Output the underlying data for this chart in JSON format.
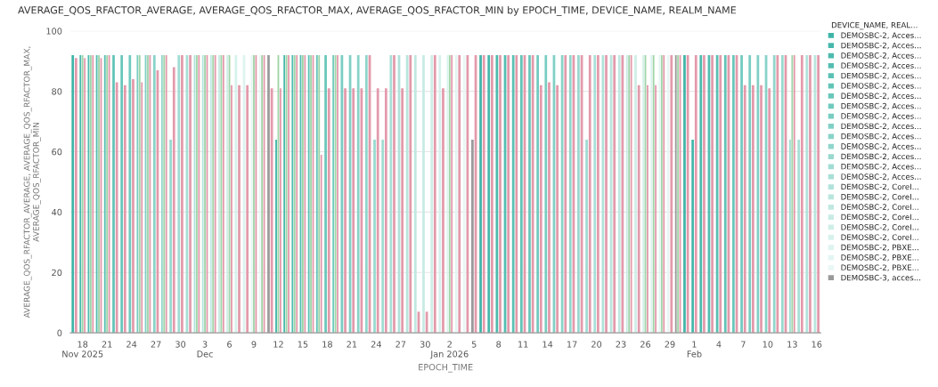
{
  "chart_data": {
    "type": "bar",
    "title": "AVERAGE_QOS_RFACTOR_AVERAGE, AVERAGE_QOS_RFACTOR_MAX, AVERAGE_QOS_RFACTOR_MIN by EPOCH_TIME, DEVICE_NAME, REALM_NAME",
    "xlabel": "EPOCH_TIME",
    "ylabel": "AVERAGE_QOS_RFACTOR_AVERAGE, AVERAGE_QOS_RFACTOR_MAX,\nAVERAGE_QOS_RFACTOR_MIN",
    "legend_title": "DEVICE_NAME, REAL...",
    "legend": "right",
    "grid": "y",
    "ylim": [
      0,
      100
    ],
    "yticks": [
      0,
      20,
      40,
      60,
      80,
      100
    ],
    "xlim": [
      "2025-11-16T12:00",
      "2026-02-16T12:00"
    ],
    "xticks": [
      {
        "value": "2025-11-18",
        "label": "18\nNov 2025"
      },
      {
        "value": "2025-11-21",
        "label": "21"
      },
      {
        "value": "2025-11-24",
        "label": "24"
      },
      {
        "value": "2025-11-27",
        "label": "27"
      },
      {
        "value": "2025-11-30",
        "label": "30"
      },
      {
        "value": "2025-12-03",
        "label": "3\nDec"
      },
      {
        "value": "2025-12-06",
        "label": "6"
      },
      {
        "value": "2025-12-09",
        "label": "9"
      },
      {
        "value": "2025-12-12",
        "label": "12"
      },
      {
        "value": "2025-12-15",
        "label": "15"
      },
      {
        "value": "2025-12-18",
        "label": "18"
      },
      {
        "value": "2025-12-21",
        "label": "21"
      },
      {
        "value": "2025-12-24",
        "label": "24"
      },
      {
        "value": "2025-12-27",
        "label": "27"
      },
      {
        "value": "2025-12-30",
        "label": "30"
      },
      {
        "value": "2026-01-02",
        "label": "2\nJan 2026"
      },
      {
        "value": "2026-01-05",
        "label": "5"
      },
      {
        "value": "2026-01-08",
        "label": "8"
      },
      {
        "value": "2026-01-11",
        "label": "11"
      },
      {
        "value": "2026-01-14",
        "label": "14"
      },
      {
        "value": "2026-01-17",
        "label": "17"
      },
      {
        "value": "2026-01-20",
        "label": "20"
      },
      {
        "value": "2026-01-23",
        "label": "23"
      },
      {
        "value": "2026-01-26",
        "label": "26"
      },
      {
        "value": "2026-01-29",
        "label": "29"
      },
      {
        "value": "2026-02-01",
        "label": "1\nFeb"
      },
      {
        "value": "2026-02-04",
        "label": "4"
      },
      {
        "value": "2026-02-07",
        "label": "7"
      },
      {
        "value": "2026-02-10",
        "label": "10"
      },
      {
        "value": "2026-02-13",
        "label": "13"
      },
      {
        "value": "2026-02-16",
        "label": "16"
      }
    ],
    "series": [
      {
        "name": "DEMOSBC-2, Acces...",
        "color": "#3fb5a8",
        "x": [
          "2025-11-17",
          "2025-12-12",
          "2026-01-06",
          "2026-01-31"
        ],
        "values": [
          92,
          64,
          92,
          92
        ]
      },
      {
        "name": "DEMOSBC-2, Acces...",
        "color": "#45b8ab",
        "x": [
          "2025-11-18",
          "2025-12-13",
          "2026-01-07",
          "2026-02-01"
        ],
        "values": [
          92,
          92,
          92,
          64
        ]
      },
      {
        "name": "DEMOSBC-2, Acces...",
        "color": "#4cbbae",
        "x": [
          "2025-11-19",
          "2025-12-14",
          "2026-01-08",
          "2026-02-02"
        ],
        "values": [
          92,
          92,
          92,
          92
        ]
      },
      {
        "name": "DEMOSBC-2, Acces...",
        "color": "#53beb1",
        "x": [
          "2025-11-20",
          "2025-12-15",
          "2026-01-09",
          "2026-02-03"
        ],
        "values": [
          92,
          92,
          92,
          92
        ]
      },
      {
        "name": "DEMOSBC-2, Acces...",
        "color": "#5ac1b4",
        "x": [
          "2025-11-21",
          "2025-12-16",
          "2026-01-10",
          "2026-02-04"
        ],
        "values": [
          92,
          92,
          92,
          92
        ]
      },
      {
        "name": "DEMOSBC-2, Acces...",
        "color": "#61c4b7",
        "x": [
          "2025-11-22",
          "2025-12-17",
          "2026-01-11",
          "2026-02-05"
        ],
        "values": [
          92,
          92,
          92,
          92
        ]
      },
      {
        "name": "DEMOSBC-2, Acces...",
        "color": "#68c7ba",
        "x": [
          "2025-11-23",
          "2025-12-18",
          "2026-01-12",
          "2026-02-06"
        ],
        "values": [
          92,
          92,
          92,
          92
        ]
      },
      {
        "name": "DEMOSBC-2, Acces...",
        "color": "#70cabe",
        "x": [
          "2025-11-24",
          "2025-12-19",
          "2026-01-13",
          "2026-02-07"
        ],
        "values": [
          92,
          92,
          92,
          92
        ]
      },
      {
        "name": "DEMOSBC-2, Acces...",
        "color": "#78cdc1",
        "x": [
          "2025-11-25",
          "2025-12-20",
          "2026-01-14",
          "2026-02-08"
        ],
        "values": [
          92,
          92,
          92,
          92
        ]
      },
      {
        "name": "DEMOSBC-2, Acces...",
        "color": "#80d0c5",
        "x": [
          "2025-11-26",
          "2025-12-21",
          "2026-01-15",
          "2026-02-09"
        ],
        "values": [
          92,
          92,
          92,
          92
        ]
      },
      {
        "name": "DEMOSBC-2, Acces...",
        "color": "#88d3c8",
        "x": [
          "2025-11-27",
          "2025-12-22",
          "2026-01-16",
          "2026-02-10"
        ],
        "values": [
          92,
          92,
          92,
          92
        ]
      },
      {
        "name": "DEMOSBC-2, Acces...",
        "color": "#90d6cc",
        "x": [
          "2025-11-28",
          "2025-12-23",
          "2026-01-17",
          "2026-02-11"
        ],
        "values": [
          92,
          92,
          92,
          92
        ]
      },
      {
        "name": "DEMOSBC-2, Acces...",
        "color": "#98d9cf",
        "x": [
          "2025-11-29",
          "2025-12-24",
          "2026-01-18",
          "2026-02-12"
        ],
        "values": [
          64,
          64,
          92,
          92
        ]
      },
      {
        "name": "DEMOSBC-2, Acces...",
        "color": "#a0dcd3",
        "x": [
          "2025-11-30",
          "2025-12-25",
          "2026-01-19",
          "2026-02-13"
        ],
        "values": [
          92,
          64,
          64,
          64
        ]
      },
      {
        "name": "DEMOSBC-2, Acces...",
        "color": "#a8dfd6",
        "x": [
          "2025-12-01",
          "2025-12-26",
          "2026-01-20",
          "2026-02-14"
        ],
        "values": [
          92,
          92,
          92,
          64
        ]
      },
      {
        "name": "DEMOSBC-2, CoreI...",
        "color": "#b0e2da",
        "x": [
          "2025-12-02",
          "2025-12-27",
          "2026-01-21",
          "2026-02-15"
        ],
        "values": [
          92,
          92,
          92,
          92
        ]
      },
      {
        "name": "DEMOSBC-2, CoreI...",
        "color": "#b8e5dd",
        "x": [
          "2025-12-03",
          "2025-12-28",
          "2026-01-22",
          "2026-02-16"
        ],
        "values": [
          92,
          92,
          92,
          92
        ]
      },
      {
        "name": "DEMOSBC-2, CoreI...",
        "color": "#c0e8e1",
        "x": [
          "2025-12-04",
          "2025-12-29",
          "2026-01-23"
        ],
        "values": [
          92,
          92,
          92
        ]
      },
      {
        "name": "DEMOSBC-2, CoreI...",
        "color": "#c8ebe4",
        "x": [
          "2025-12-05",
          "2025-12-30",
          "2026-01-24"
        ],
        "values": [
          92,
          92,
          92
        ]
      },
      {
        "name": "DEMOSBC-2, CoreI...",
        "color": "#cfeee8",
        "x": [
          "2025-12-06",
          "2025-12-31",
          "2026-01-25"
        ],
        "values": [
          92,
          92,
          92
        ]
      },
      {
        "name": "DEMOSBC-2, CoreI...",
        "color": "#d6f1eb",
        "x": [
          "2025-12-07",
          "2026-01-01",
          "2026-01-26"
        ],
        "values": [
          92,
          92,
          92
        ]
      },
      {
        "name": "DEMOSBC-2, PBXE...",
        "color": "#ddf3ef",
        "x": [
          "2025-12-08",
          "2026-01-02",
          "2026-01-27"
        ],
        "values": [
          92,
          92,
          92
        ]
      },
      {
        "name": "DEMOSBC-2, PBXE...",
        "color": "#e3f5f2",
        "x": [
          "2025-12-09",
          "2026-01-03",
          "2026-01-28"
        ],
        "values": [
          92,
          92,
          92
        ]
      },
      {
        "name": "DEMOSBC-2, PBXE...",
        "color": "#e9f7f5",
        "x": [
          "2025-12-10",
          "2026-01-04",
          "2026-01-29"
        ],
        "values": [
          92,
          92,
          92
        ]
      },
      {
        "name": "DEMOSBC-3, acces...",
        "color": "#9a9a9a",
        "x": [
          "2025-12-11",
          "2026-01-05",
          "2026-01-30"
        ],
        "values": [
          92,
          64,
          92
        ]
      },
      {
        "color": "#9fd4a8",
        "x": [
          "2025-11-18",
          "2025-11-19",
          "2025-11-20",
          "2025-11-21",
          "2025-11-25",
          "2025-11-26",
          "2025-11-28",
          "2025-12-02",
          "2025-12-03",
          "2025-12-04",
          "2025-12-05",
          "2025-12-06",
          "2025-12-09",
          "2025-12-10",
          "2025-12-12",
          "2025-12-13",
          "2025-12-14",
          "2025-12-15",
          "2025-12-16",
          "2025-12-17",
          "2025-12-19",
          "2026-01-02",
          "2026-01-24",
          "2026-01-26",
          "2026-01-27",
          "2026-01-28",
          "2026-01-30",
          "2026-02-13"
        ],
        "values": [
          92,
          92,
          92,
          92,
          92,
          92,
          92,
          92,
          92,
          92,
          92,
          92,
          92,
          92,
          92,
          92,
          92,
          92,
          92,
          92,
          92,
          92,
          92,
          92,
          92,
          92,
          92,
          92
        ]
      },
      {
        "color": "#e39aab",
        "x": [
          "2025-11-17",
          "2025-11-18",
          "2025-11-19",
          "2025-11-20",
          "2025-11-21",
          "2025-11-22",
          "2025-11-23",
          "2025-11-24",
          "2025-11-25",
          "2025-11-26",
          "2025-11-27",
          "2025-11-28",
          "2025-11-29",
          "2025-11-30",
          "2025-12-01",
          "2025-12-02",
          "2025-12-03",
          "2025-12-04",
          "2025-12-05",
          "2025-12-06",
          "2025-12-07",
          "2025-12-08",
          "2025-12-09",
          "2025-12-10",
          "2025-12-11",
          "2025-12-12",
          "2025-12-13",
          "2025-12-14",
          "2025-12-15",
          "2025-12-16",
          "2025-12-17",
          "2025-12-18",
          "2025-12-19",
          "2025-12-20",
          "2025-12-21",
          "2025-12-22",
          "2025-12-23",
          "2025-12-24",
          "2025-12-25",
          "2025-12-26",
          "2025-12-27",
          "2025-12-28",
          "2025-12-29",
          "2025-12-30",
          "2025-12-31",
          "2026-01-01",
          "2026-01-02",
          "2026-01-03",
          "2026-01-04",
          "2026-01-05",
          "2026-01-06",
          "2026-01-07",
          "2026-01-08",
          "2026-01-09",
          "2026-01-10",
          "2026-01-11",
          "2026-01-12",
          "2026-01-13",
          "2026-01-14",
          "2026-01-15",
          "2026-01-16",
          "2026-01-17",
          "2026-01-18",
          "2026-01-19",
          "2026-01-20",
          "2026-01-21",
          "2026-01-22",
          "2026-01-23",
          "2026-01-24",
          "2026-01-25",
          "2026-01-26",
          "2026-01-27",
          "2026-01-28",
          "2026-01-29",
          "2026-01-30",
          "2026-01-31",
          "2026-02-01",
          "2026-02-02",
          "2026-02-03",
          "2026-02-04",
          "2026-02-05",
          "2026-02-06",
          "2026-02-07",
          "2026-02-08",
          "2026-02-09",
          "2026-02-10",
          "2026-02-11",
          "2026-02-12",
          "2026-02-13",
          "2026-02-14",
          "2026-02-15",
          "2026-02-16"
        ],
        "values": [
          91,
          91,
          92,
          91,
          92,
          83,
          82,
          84,
          83,
          92,
          87,
          92,
          88,
          92,
          92,
          92,
          92,
          92,
          92,
          82,
          82,
          82,
          92,
          92,
          81,
          81,
          92,
          92,
          92,
          92,
          59,
          81,
          92,
          81,
          81,
          81,
          92,
          81,
          81,
          92,
          81,
          92,
          7,
          7,
          92,
          81,
          92,
          92,
          92,
          92,
          92,
          92,
          92,
          92,
          92,
          92,
          92,
          82,
          83,
          82,
          92,
          92,
          92,
          92,
          92,
          92,
          92,
          92,
          92,
          82,
          82,
          82,
          92,
          92,
          92,
          92,
          92,
          92,
          92,
          92,
          92,
          92,
          82,
          82,
          82,
          81,
          92,
          92,
          92,
          92,
          92,
          92
        ]
      }
    ]
  }
}
